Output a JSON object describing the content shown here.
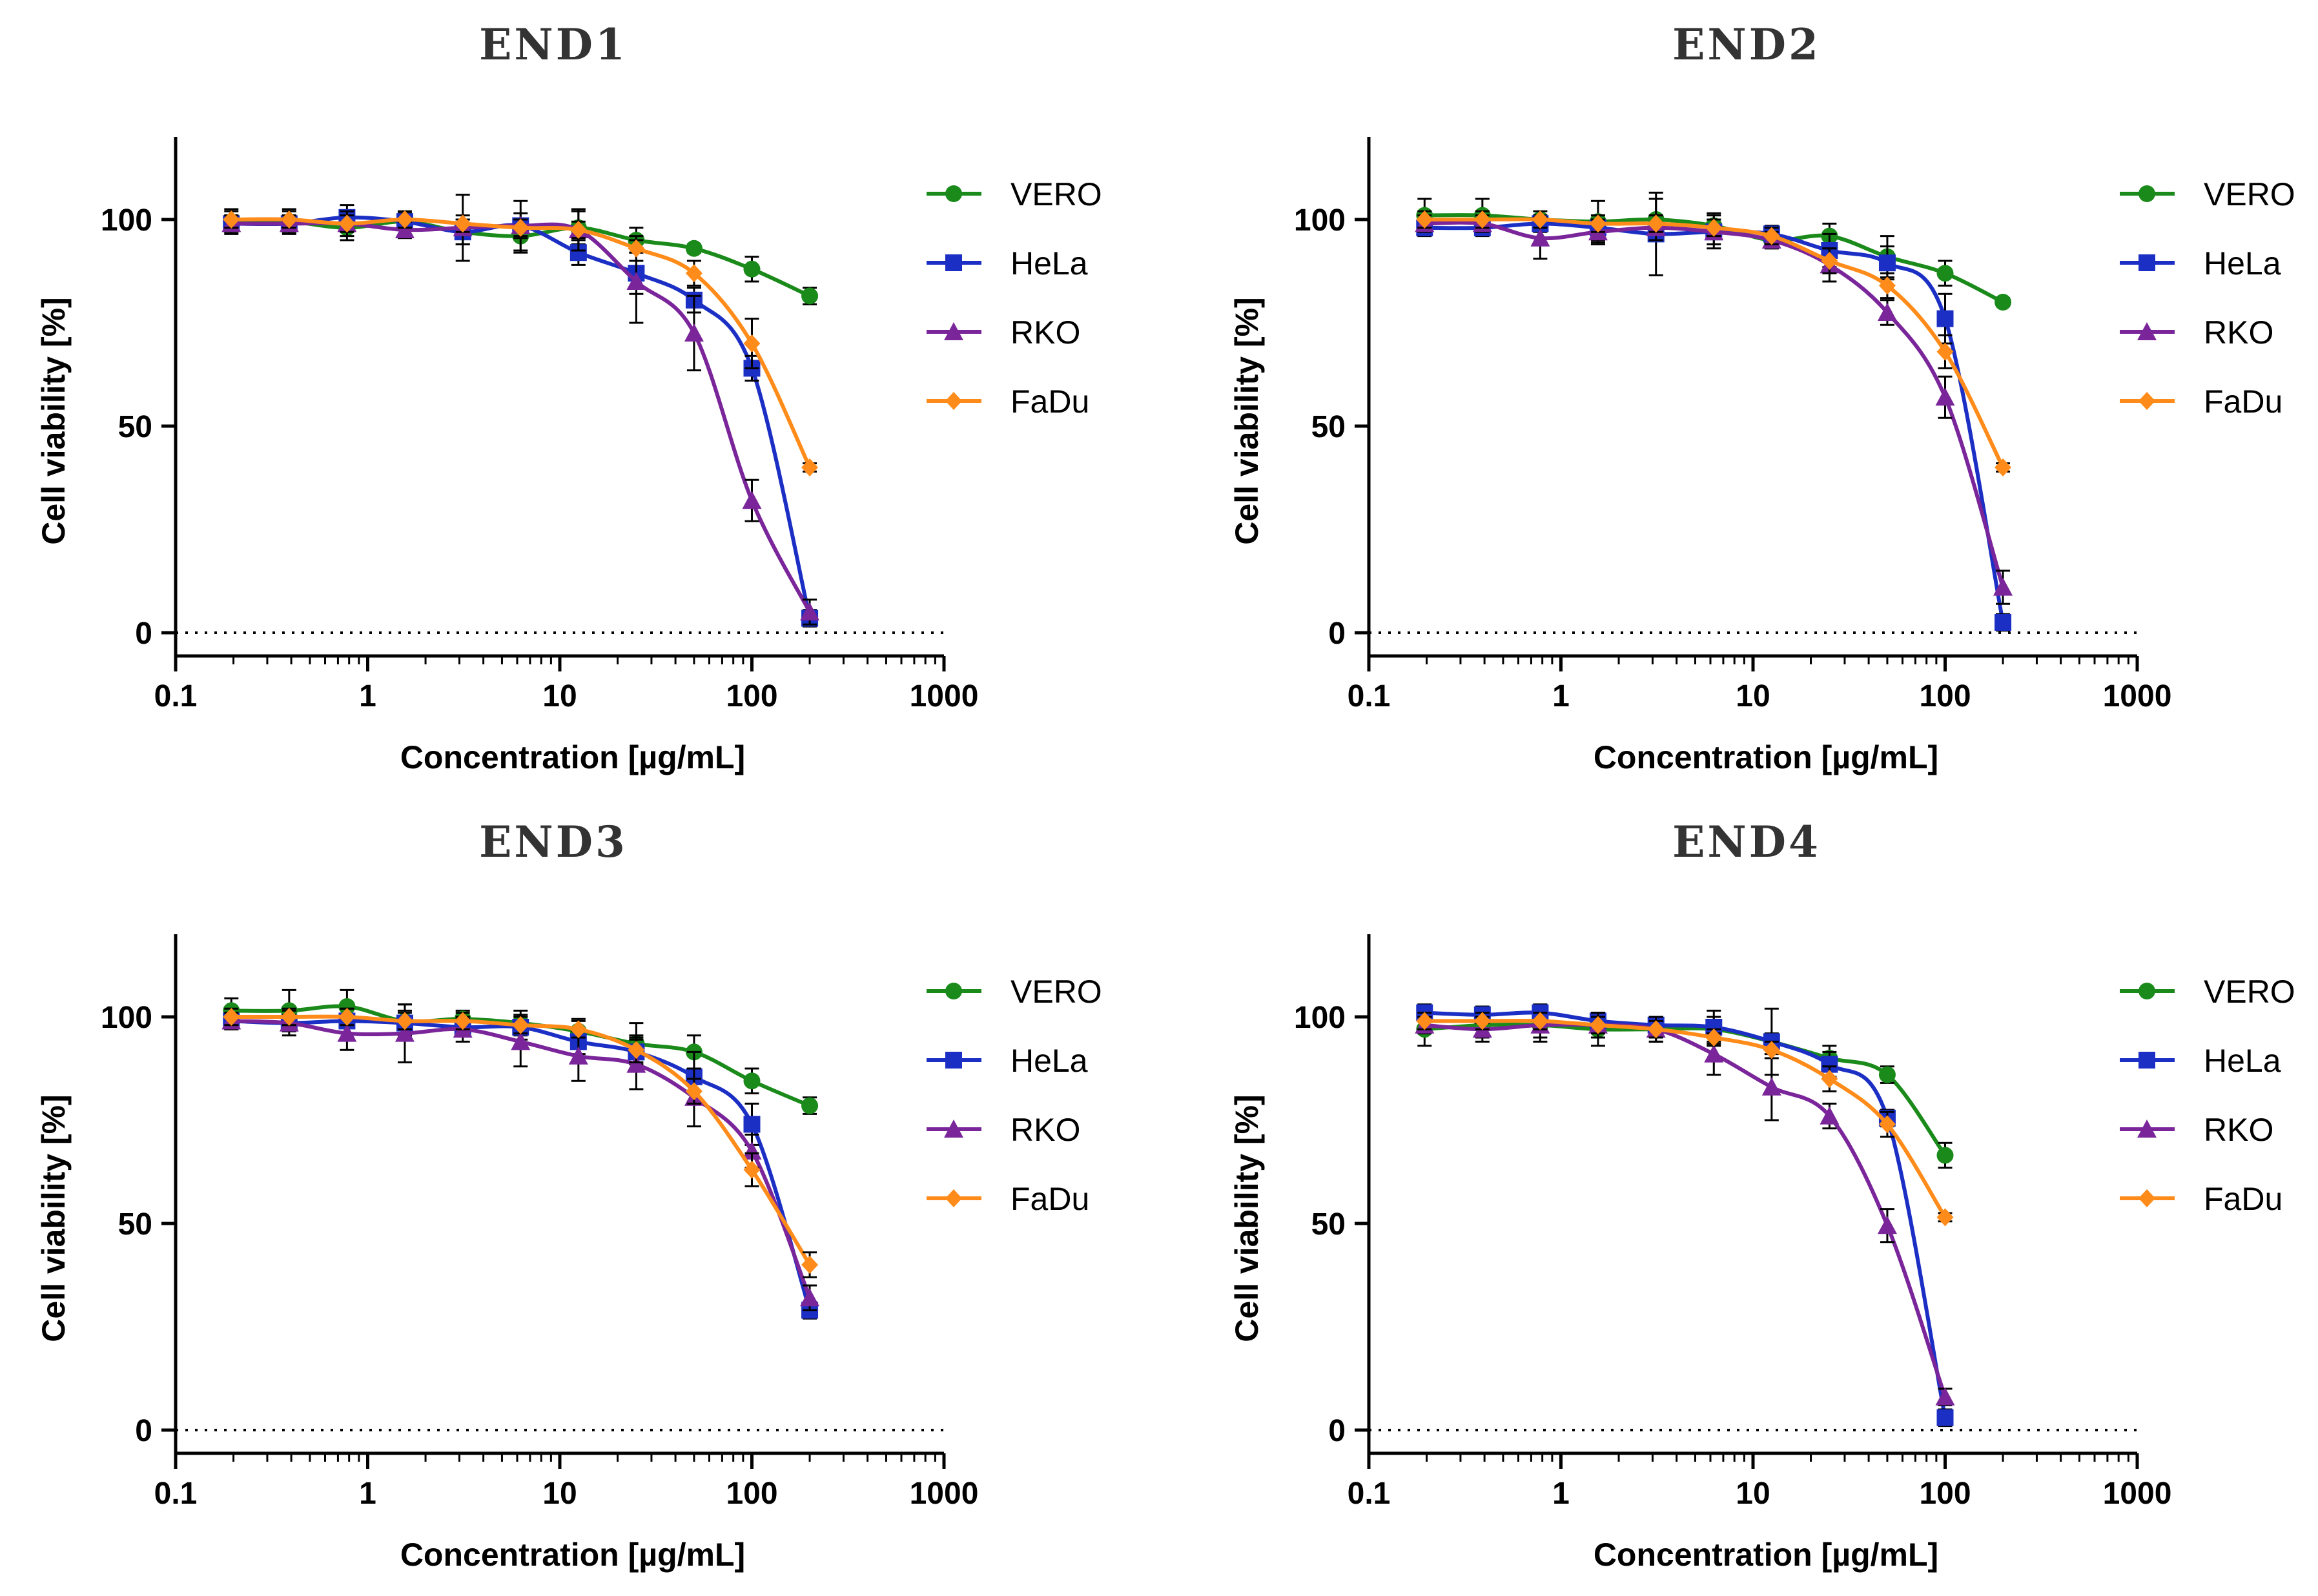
{
  "figure": {
    "xlabel": "Concentration [µg/mL]",
    "ylabel": "Cell viability [%]"
  },
  "colors": {
    "VERO": "#1a8a1a",
    "HeLa": "#1c2fc4",
    "RKO": "#7a259a",
    "FaDu": "#ff8c1a"
  },
  "chart_data": [
    {
      "type": "line",
      "title": "END1",
      "xscale": "log",
      "xlim": [
        0.1,
        1000
      ],
      "ylim": [
        -5,
        120
      ],
      "xticks": [
        "0.1",
        "1",
        "10",
        "100",
        "1000"
      ],
      "yticks": [
        "0",
        "50",
        "100"
      ],
      "x": [
        0.195,
        0.39,
        0.78,
        1.56,
        3.125,
        6.25,
        12.5,
        25,
        50,
        100,
        200
      ],
      "legend": [
        "VERO",
        "HeLa",
        "RKO",
        "FaDu"
      ],
      "series": [
        {
          "name": "VERO",
          "marker": "circle",
          "values": [
            99.5,
            99.5,
            98,
            99.5,
            97,
            96,
            98,
            95,
            93,
            88,
            81.5
          ],
          "errors": [
            3,
            3,
            3,
            2,
            3,
            4,
            4,
            3,
            1,
            3,
            2
          ]
        },
        {
          "name": "HeLa",
          "marker": "square",
          "values": [
            99,
            99,
            100.5,
            99.5,
            97,
            98.5,
            92,
            87,
            80.5,
            64,
            3.5
          ],
          "errors": [
            2,
            2,
            3,
            2,
            3,
            3,
            3,
            5,
            3,
            3,
            2
          ]
        },
        {
          "name": "RKO",
          "marker": "triangle",
          "values": [
            99,
            99,
            99,
            97.5,
            98,
            98.5,
            97.5,
            85,
            72.5,
            32,
            5
          ],
          "errors": [
            2,
            2,
            3,
            2,
            8,
            6,
            5,
            10,
            9,
            5,
            3
          ]
        },
        {
          "name": "FaDu",
          "marker": "diamond",
          "values": [
            100,
            100,
            99,
            100,
            99,
            98,
            97.5,
            93,
            87,
            70,
            40
          ],
          "errors": [
            2,
            2,
            2,
            2,
            2,
            2,
            2,
            3,
            3,
            6,
            1
          ]
        }
      ]
    },
    {
      "type": "line",
      "title": "END2",
      "xscale": "log",
      "xlim": [
        0.1,
        1000
      ],
      "ylim": [
        -5,
        120
      ],
      "xticks": [
        "0.1",
        "1",
        "10",
        "100",
        "1000"
      ],
      "yticks": [
        "0",
        "50",
        "100"
      ],
      "x": [
        0.195,
        0.39,
        0.78,
        1.56,
        3.125,
        6.25,
        12.5,
        25,
        50,
        100,
        200
      ],
      "legend": [
        "VERO",
        "HeLa",
        "RKO",
        "FaDu"
      ],
      "series": [
        {
          "name": "VERO",
          "marker": "circle",
          "values": [
            101,
            101,
            100,
            99.5,
            100,
            98.5,
            95,
            96,
            91,
            87,
            80
          ],
          "errors": [
            4,
            4,
            1,
            5,
            5,
            3,
            2,
            3,
            5,
            3,
            1
          ]
        },
        {
          "name": "HeLa",
          "marker": "square",
          "values": [
            98,
            98,
            99,
            98,
            96.5,
            97,
            96.5,
            92.5,
            89.5,
            76,
            2.5
          ],
          "errors": [
            2,
            2,
            2,
            3,
            10,
            4,
            2,
            4,
            4,
            6,
            2
          ]
        },
        {
          "name": "RKO",
          "marker": "triangle",
          "values": [
            99,
            99,
            95.5,
            97,
            98,
            97,
            95,
            89,
            77.5,
            57,
            11
          ],
          "errors": [
            2,
            2,
            5,
            3,
            3,
            3,
            2,
            4,
            3,
            5,
            4
          ]
        },
        {
          "name": "FaDu",
          "marker": "diamond",
          "values": [
            100,
            100,
            100,
            99,
            99,
            98,
            96,
            90,
            84,
            68,
            40
          ],
          "errors": [
            2,
            2,
            2,
            2,
            2,
            2,
            2,
            3,
            3,
            4,
            1
          ]
        }
      ]
    },
    {
      "type": "line",
      "title": "END3",
      "xscale": "log",
      "xlim": [
        0.1,
        1000
      ],
      "ylim": [
        -5,
        120
      ],
      "xticks": [
        "0.1",
        "1",
        "10",
        "100",
        "1000"
      ],
      "yticks": [
        "0",
        "50",
        "100"
      ],
      "x": [
        0.195,
        0.39,
        0.78,
        1.56,
        3.125,
        6.25,
        12.5,
        25,
        50,
        100,
        200
      ],
      "legend": [
        "VERO",
        "HeLa",
        "RKO",
        "FaDu"
      ],
      "series": [
        {
          "name": "VERO",
          "marker": "circle",
          "values": [
            101.5,
            101.5,
            102.5,
            99,
            99.5,
            98.5,
            96.5,
            93.5,
            91.5,
            84.5,
            78.5
          ],
          "errors": [
            3,
            5,
            4,
            4,
            2,
            3,
            3,
            5,
            4,
            3,
            2
          ]
        },
        {
          "name": "HeLa",
          "marker": "square",
          "values": [
            99,
            98.5,
            99,
            98.5,
            97.5,
            97.5,
            94,
            91.5,
            85.5,
            74,
            29
          ],
          "errors": [
            2,
            2,
            3,
            3,
            2,
            3,
            3,
            4,
            6,
            5,
            2
          ]
        },
        {
          "name": "RKO",
          "marker": "triangle",
          "values": [
            99,
            98.5,
            96,
            96,
            97,
            94,
            90.5,
            88.5,
            80.5,
            67.5,
            32
          ],
          "errors": [
            2,
            3,
            4,
            7,
            3,
            6,
            6,
            6,
            7,
            4,
            3
          ]
        },
        {
          "name": "FaDu",
          "marker": "diamond",
          "values": [
            100,
            100,
            100,
            99,
            99,
            98,
            97,
            92,
            82,
            63,
            40
          ],
          "errors": [
            2,
            2,
            2,
            2,
            2,
            2,
            2,
            3,
            3,
            4,
            3
          ]
        }
      ]
    },
    {
      "type": "line",
      "title": "END4",
      "xscale": "log",
      "xlim": [
        0.1,
        1000
      ],
      "ylim": [
        -5,
        120
      ],
      "xticks": [
        "0.1",
        "1",
        "10",
        "100",
        "1000"
      ],
      "yticks": [
        "0",
        "50",
        "100"
      ],
      "x": [
        0.195,
        0.39,
        0.78,
        1.56,
        3.125,
        6.25,
        12.5,
        25,
        50,
        100
      ],
      "legend": [
        "VERO",
        "HeLa",
        "RKO",
        "FaDu"
      ],
      "series": [
        {
          "name": "VERO",
          "marker": "circle",
          "values": [
            97,
            98,
            98,
            97,
            97,
            97,
            94,
            90,
            86,
            66.5
          ],
          "errors": [
            4,
            3,
            4,
            4,
            3,
            3,
            2,
            3,
            2,
            3
          ]
        },
        {
          "name": "HeLa",
          "marker": "square",
          "values": [
            101,
            100.5,
            101,
            99,
            98,
            97.5,
            94,
            88.5,
            75.5,
            3
          ],
          "errors": [
            2,
            2,
            2,
            2,
            2,
            4,
            8,
            3,
            2,
            2
          ]
        },
        {
          "name": "RKO",
          "marker": "triangle",
          "values": [
            98,
            97,
            98,
            98,
            97,
            91,
            83,
            76,
            49.5,
            8
          ],
          "errors": [
            2,
            3,
            3,
            3,
            3,
            5,
            8,
            3,
            4,
            2
          ]
        },
        {
          "name": "FaDu",
          "marker": "diamond",
          "values": [
            99,
            99,
            99,
            98,
            97,
            95,
            92,
            85,
            74,
            51.5
          ],
          "errors": [
            2,
            2,
            2,
            2,
            2,
            2,
            2,
            3,
            3,
            1
          ]
        }
      ]
    }
  ]
}
